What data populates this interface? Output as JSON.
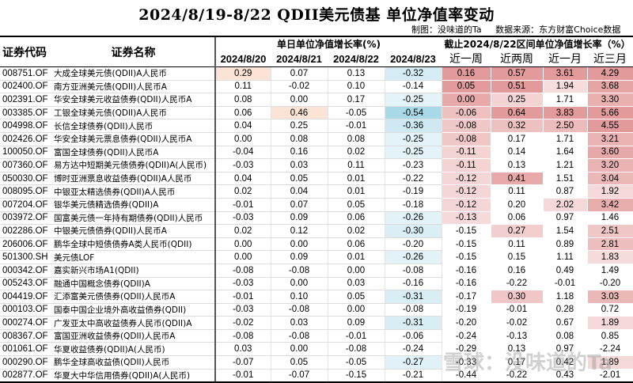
{
  "title": "2024/8/19-8/22 QDII美元债基 单位净值率变动",
  "credit": {
    "maker": "制图：没味道的Ta",
    "source": "数据来源：东方财富Choice数据"
  },
  "headers": {
    "code": "证券代码",
    "name": "证券名称",
    "daily_group": "单日单位净值增长率(%)",
    "interval_group": "截止2024/8/22区间单位净值增长率（%）",
    "daily": [
      "2024/8/20",
      "2024/8/21",
      "2024/8/22",
      "2024/8/23"
    ],
    "interval": [
      "近一周",
      "近两周",
      "近一月",
      "近三月"
    ]
  },
  "colors": {
    "positive_daily": "#fbe4d5",
    "negative_daily": "#a9d8e6",
    "interval_high": "#e29a9a",
    "interval_low": "#f7dede"
  },
  "rows": [
    {
      "code": "008751.OF",
      "name": "大成全球美元债(QDII)A人民币",
      "daily": [
        "0.29",
        "0.07",
        "0.13",
        "-0.32"
      ],
      "interval": [
        "0.16",
        "0.57",
        "3.61",
        "4.29"
      ]
    },
    {
      "code": "002400.OF",
      "name": "南方亚洲美元债(QDII)人民币A",
      "daily": [
        "0.11",
        "-0.02",
        "0.10",
        "-0.14"
      ],
      "interval": [
        "0.05",
        "0.51",
        "1.94",
        "3.68"
      ]
    },
    {
      "code": "002391.OF",
      "name": "华安全球美元收益债券(QDII)人民币A",
      "daily": [
        "0.08",
        "0.00",
        "0.17",
        "-0.25"
      ],
      "interval": [
        "0.00",
        "0.25",
        "1.71",
        "3.30"
      ]
    },
    {
      "code": "003385.OF",
      "name": "工银全球美元债(QDII)A人民币",
      "daily": [
        "0.06",
        "0.46",
        "-0.05",
        "-0.54"
      ],
      "interval": [
        "-0.06",
        "0.64",
        "3.83",
        "5.66"
      ]
    },
    {
      "code": "004998.OF",
      "name": "长信全球债券(QDII)人民币",
      "daily": [
        "0.04",
        "0.25",
        "-0.01",
        "-0.36"
      ],
      "interval": [
        "-0.08",
        "0.32",
        "2.50",
        "4.55"
      ]
    },
    {
      "code": "002426.OF",
      "name": "华安全球美元票息债券(QDII)人民币A",
      "daily": [
        "0.00",
        "0.08",
        "0.08",
        "-0.25"
      ],
      "interval": [
        "-0.08",
        "0.17",
        "1.71",
        "3.21"
      ]
    },
    {
      "code": "100050.OF",
      "name": "富国全球债券(QDII)人民币A",
      "daily": [
        "-0.04",
        "0.16",
        "0.02",
        "-0.25"
      ],
      "interval": [
        "-0.11",
        "0.14",
        "1.64",
        "3.60"
      ]
    },
    {
      "code": "007360.OF",
      "name": "易方达中短期美元债债券(QDII)A(人民币)",
      "daily": [
        "-0.03",
        "0.03",
        "0.11",
        "-0.23"
      ],
      "interval": [
        "-0.11",
        "0.13",
        "1.21",
        "3.20"
      ]
    },
    {
      "code": "050030.OF",
      "name": "博时亚洲票息收益债券(QDII)A人民币",
      "daily": [
        "0.04",
        "0.05",
        "0.01",
        "-0.22"
      ],
      "interval": [
        "-0.12",
        "0.41",
        "1.51",
        "3.04"
      ]
    },
    {
      "code": "008095.OF",
      "name": "中银亚太精选债券(QDII)A人民币",
      "daily": [
        "0.02",
        "0.04",
        "0.01",
        "-0.19"
      ],
      "interval": [
        "-0.12",
        "0.11",
        "0.87",
        "1.92"
      ]
    },
    {
      "code": "007204.OF",
      "name": "银华美元债精选债券(QDII)A",
      "daily": [
        "-0.01",
        "0.07",
        "0.05",
        "-0.18"
      ],
      "interval": [
        "-0.12",
        "0.20",
        "2.02",
        "3.42"
      ]
    },
    {
      "code": "003972.OF",
      "name": "国富美元债一年持有期债券(QDII)人民币",
      "daily": [
        "-0.03",
        "0.09",
        "0.06",
        "-0.26"
      ],
      "interval": [
        "-0.13",
        "0.06",
        "0.97",
        "1.46"
      ]
    },
    {
      "code": "002286.OF",
      "name": "中银美元债债券(QDII)人民币A",
      "daily": [
        "0.02",
        "0.12",
        "0.02",
        "-0.30"
      ],
      "interval": [
        "-0.15",
        "0.27",
        "1.54",
        "2.51"
      ]
    },
    {
      "code": "206006.OF",
      "name": "鹏华全球中短债债券A类人民币(QDII)",
      "daily": [
        "0.00",
        "0.00",
        "0.06",
        "-0.20"
      ],
      "interval": [
        "-0.15",
        "0.11",
        "0.89",
        "2.81"
      ]
    },
    {
      "code": "501300.SH",
      "name": "美元债LOF",
      "daily": [
        "0.00",
        "0.09",
        "0.01",
        "-0.26"
      ],
      "interval": [
        "-0.15",
        "0.15",
        "1.11",
        "1.83"
      ]
    },
    {
      "code": "000342.OF",
      "name": "嘉实新兴市场A1(QDII)",
      "daily": [
        "-0.08",
        "-0.08",
        "0.00",
        "-0.08"
      ],
      "interval": [
        "-0.16",
        "0.16",
        "0.49",
        "1.49"
      ]
    },
    {
      "code": "005243.OF",
      "name": "融通中国概念债券(QDII)A",
      "daily": [
        "-0.03",
        "0.00",
        "0.03",
        "-0.16"
      ],
      "interval": [
        "-0.16",
        "-0.22",
        "-0.01",
        "-0.20"
      ]
    },
    {
      "code": "004419.OF",
      "name": "汇添富美元债债券(QDII)人民币A",
      "daily": [
        "-0.01",
        "0.10",
        "0.05",
        "-0.31"
      ],
      "interval": [
        "-0.17",
        "0.30",
        "1.18",
        "3.03"
      ]
    },
    {
      "code": "000103.OF",
      "name": "国泰中国企业境外高收益债券(QDII)",
      "daily": [
        "-0.03",
        "-0.08",
        "0.00",
        "-0.08"
      ],
      "interval": [
        "-0.19",
        "-0.01",
        "0.28",
        "0.72"
      ]
    },
    {
      "code": "000274.OF",
      "name": "广发亚太中高收益债券人民币(QDII)A",
      "daily": [
        "-0.02",
        "0.03",
        "0.09",
        "-0.31"
      ],
      "interval": [
        "-0.20",
        "-0.02",
        "0.67",
        "1.89"
      ]
    },
    {
      "code": "008367.OF",
      "name": "富国亚洲收益债券(QDII)人民币A",
      "daily": [
        "-0.08",
        "-0.08",
        "-0.01",
        "-0.06"
      ],
      "interval": [
        "-0.24",
        "-0.13",
        "0.08",
        "0.85"
      ]
    },
    {
      "code": "001061.OF",
      "name": "华夏收益债券(QDII)A(人民币)",
      "daily": [
        "0.03",
        "0.00",
        "-0.08",
        "-0.24"
      ],
      "interval": [
        "-0.29",
        "0.13",
        "0.97",
        "-2.24"
      ]
    },
    {
      "code": "000290.OF",
      "name": "鹏华全球高收益债(QDII)人民币",
      "daily": [
        "-0.07",
        "0.05",
        "-0.05",
        "-0.27"
      ],
      "interval": [
        "-0.33",
        "0.17",
        "0.42",
        "1.89"
      ]
    },
    {
      "code": "002877.OF",
      "name": "华夏大中华信用债券(QDII)A(人民币)",
      "daily": [
        "-0.01",
        "-0.07",
        "-0.15",
        "-0.21"
      ],
      "interval": [
        "-0.44",
        "-0.22",
        "0.43",
        "-2.01"
      ]
    }
  ],
  "watermark": "雪球：没味道的Ta"
}
